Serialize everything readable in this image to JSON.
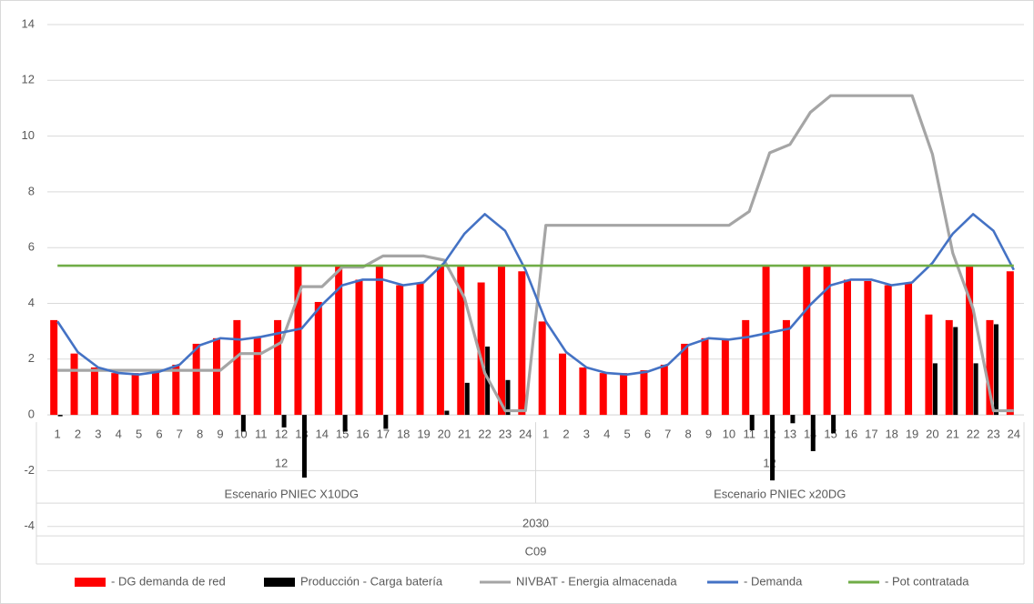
{
  "chart_data": {
    "type": "bar-line",
    "categories": [
      1,
      2,
      3,
      4,
      5,
      6,
      7,
      8,
      9,
      10,
      11,
      12,
      13,
      14,
      15,
      16,
      17,
      18,
      19,
      20,
      21,
      22,
      23,
      24,
      1,
      2,
      3,
      4,
      5,
      6,
      7,
      8,
      9,
      10,
      11,
      12,
      13,
      14,
      15,
      16,
      17,
      18,
      19,
      20,
      21,
      22,
      23,
      24
    ],
    "category_levels": [
      [
        "Escenario PNIEC X10DG",
        "Escenario PNIEC x20DG"
      ],
      [
        "2030"
      ],
      [
        "C09"
      ]
    ],
    "annotations": [
      "12",
      "12"
    ],
    "ylim": [
      -6,
      14
    ],
    "yticks": [
      -4,
      -2,
      0,
      2,
      4,
      6,
      8,
      10,
      12,
      14
    ],
    "grid": true,
    "legend": "bottom",
    "series": [
      {
        "name": "- DG demanda de red",
        "type": "bar",
        "color": "#ff0000",
        "values": [
          3.4,
          2.2,
          1.7,
          1.5,
          1.5,
          1.6,
          1.8,
          2.55,
          2.75,
          3.4,
          2.8,
          3.4,
          5.35,
          4.05,
          5.35,
          4.85,
          5.35,
          4.65,
          4.75,
          5.35,
          5.35,
          4.75,
          5.35,
          5.15,
          3.35,
          2.2,
          1.7,
          1.5,
          1.5,
          1.6,
          1.8,
          2.55,
          2.75,
          2.7,
          3.4,
          5.35,
          3.4,
          5.35,
          5.35,
          4.85,
          4.8,
          4.65,
          4.75,
          3.6,
          3.4,
          5.35,
          3.4,
          5.15
        ]
      },
      {
        "name": "Producción - Carga batería",
        "type": "bar",
        "color": "#000000",
        "values": [
          -0.05,
          0,
          0,
          0,
          0,
          0,
          0,
          0,
          0,
          -0.6,
          0,
          -0.45,
          -2.25,
          0,
          -0.6,
          0,
          -0.5,
          0,
          0,
          0.15,
          1.15,
          2.45,
          1.25,
          0,
          0,
          0,
          0,
          0,
          0,
          0,
          0,
          0,
          0,
          0,
          -0.55,
          -2.35,
          -0.3,
          -1.3,
          -0.65,
          0,
          0,
          0,
          0,
          1.85,
          3.15,
          1.85,
          3.25,
          0
        ]
      },
      {
        "name": "NIVBAT - Energia almacenada",
        "type": "line",
        "color": "#a5a5a5",
        "values": [
          1.6,
          1.6,
          1.6,
          1.6,
          1.6,
          1.6,
          1.6,
          1.6,
          1.6,
          2.2,
          2.2,
          2.6,
          4.6,
          4.6,
          5.3,
          5.3,
          5.7,
          5.7,
          5.7,
          5.55,
          4.2,
          1.5,
          0.15,
          0.15,
          6.8,
          6.8,
          6.8,
          6.8,
          6.8,
          6.8,
          6.8,
          6.8,
          6.8,
          6.8,
          7.3,
          9.4,
          9.7,
          10.85,
          11.45,
          11.45,
          11.45,
          11.45,
          11.45,
          9.35,
          5.8,
          3.8,
          0.15,
          0.15
        ]
      },
      {
        "name": "- Demanda",
        "type": "line",
        "color": "#4472c4",
        "values": [
          3.35,
          2.25,
          1.7,
          1.5,
          1.45,
          1.55,
          1.8,
          2.5,
          2.75,
          2.7,
          2.8,
          2.95,
          3.1,
          3.95,
          4.65,
          4.85,
          4.85,
          4.65,
          4.75,
          5.45,
          6.5,
          7.2,
          6.6,
          5.2,
          3.35,
          2.25,
          1.7,
          1.5,
          1.45,
          1.55,
          1.8,
          2.5,
          2.75,
          2.7,
          2.8,
          2.95,
          3.1,
          3.95,
          4.65,
          4.85,
          4.85,
          4.65,
          4.75,
          5.45,
          6.5,
          7.2,
          6.6,
          5.2
        ]
      },
      {
        "name": "- Pot contratada",
        "type": "line",
        "color": "#70ad47",
        "values": [
          5.35,
          5.35,
          5.35,
          5.35,
          5.35,
          5.35,
          5.35,
          5.35,
          5.35,
          5.35,
          5.35,
          5.35,
          5.35,
          5.35,
          5.35,
          5.35,
          5.35,
          5.35,
          5.35,
          5.35,
          5.35,
          5.35,
          5.35,
          5.35,
          5.35,
          5.35,
          5.35,
          5.35,
          5.35,
          5.35,
          5.35,
          5.35,
          5.35,
          5.35,
          5.35,
          5.35,
          5.35,
          5.35,
          5.35,
          5.35,
          5.35,
          5.35,
          5.35,
          5.35,
          5.35,
          5.35,
          5.35,
          5.35
        ]
      }
    ]
  }
}
